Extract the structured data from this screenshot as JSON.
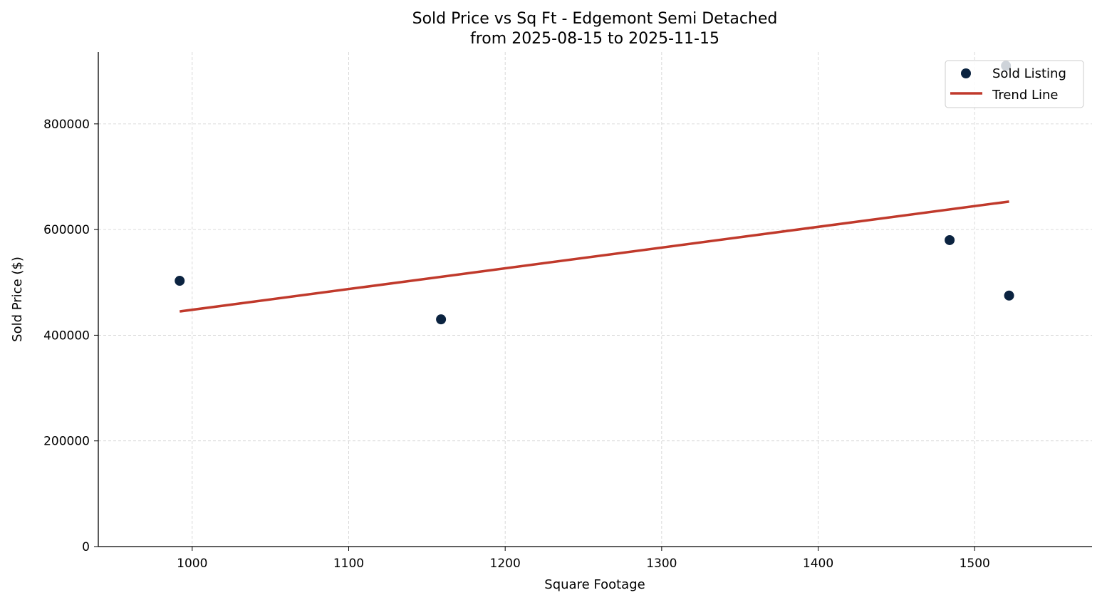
{
  "chart_data": {
    "type": "scatter",
    "title": "Sold Price vs Sq Ft - Edgemont Semi Detached",
    "subtitle": "from 2025-08-15 to 2025-11-15",
    "xlabel": "Square Footage",
    "ylabel": "Sold Price ($)",
    "xlim": [
      940,
      1575
    ],
    "ylim": [
      0,
      936000
    ],
    "xticks": [
      1000,
      1100,
      1200,
      1300,
      1400,
      1500
    ],
    "yticks": [
      0,
      200000,
      400000,
      600000,
      800000
    ],
    "grid": true,
    "legend": "top-right",
    "series": [
      {
        "name": "Sold Listing",
        "type": "scatter",
        "color": "#0b2340",
        "points": [
          {
            "x": 992,
            "y": 503000
          },
          {
            "x": 1159,
            "y": 430000
          },
          {
            "x": 1484,
            "y": 580000
          },
          {
            "x": 1522,
            "y": 475000
          },
          {
            "x": 1520,
            "y": 910000
          }
        ]
      },
      {
        "name": "Trend Line",
        "type": "line",
        "color": "#c0392b",
        "points": [
          {
            "x": 992,
            "y": 445000
          },
          {
            "x": 1522,
            "y": 653000
          }
        ]
      }
    ]
  }
}
